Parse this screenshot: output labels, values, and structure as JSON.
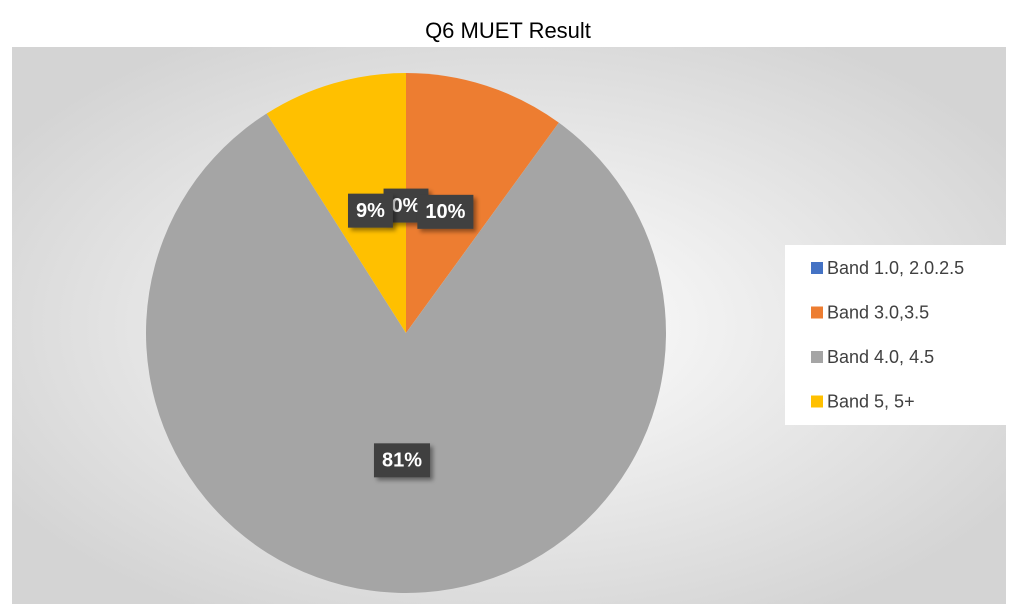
{
  "chart_data": {
    "type": "pie",
    "title": "Q6 MUET Result",
    "categories": [
      "Band 1.0, 2.0.2.5",
      "Band 3.0,3.5",
      "Band 4.0, 4.5",
      "Band 5, 5+"
    ],
    "values": [
      0,
      10,
      81,
      9
    ],
    "value_labels": [
      "0%",
      "10%",
      "81%",
      "9%"
    ],
    "colors": [
      "#4472c4",
      "#ed7d31",
      "#a5a5a5",
      "#ffc000"
    ],
    "legend": "right"
  }
}
